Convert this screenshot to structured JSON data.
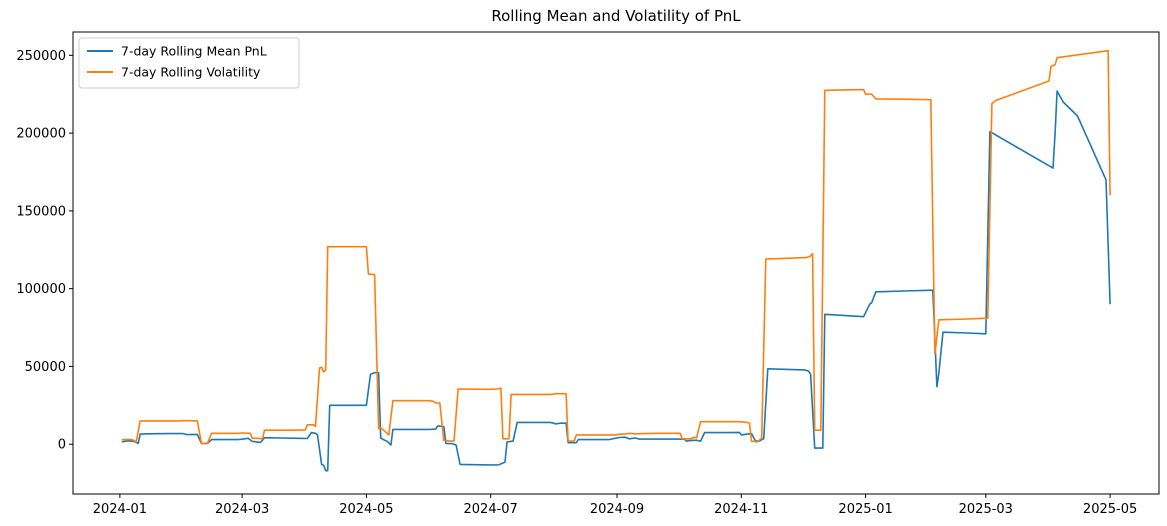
{
  "chart_data": {
    "type": "line",
    "title": "Rolling Mean and Volatility of PnL",
    "xlabel": "",
    "ylabel": "",
    "x_axis_type": "date",
    "xlim": [
      "2023-12-09",
      "2025-05-25"
    ],
    "ylim": [
      -32000,
      265000
    ],
    "x_ticks": [
      "2024-01-01",
      "2024-03-01",
      "2024-05-01",
      "2024-07-01",
      "2024-09-01",
      "2024-11-01",
      "2025-01-01",
      "2025-03-01",
      "2025-05-01"
    ],
    "x_tick_labels": [
      "2024-01",
      "2024-03",
      "2024-05",
      "2024-07",
      "2024-09",
      "2024-11",
      "2025-01",
      "2025-03",
      "2025-05"
    ],
    "y_ticks": [
      0,
      50000,
      100000,
      150000,
      200000,
      250000
    ],
    "y_tick_labels": [
      "0",
      "50000",
      "100000",
      "150000",
      "200000",
      "250000"
    ],
    "grid": false,
    "legend_position": "top-left",
    "series": [
      {
        "name": "7-day Rolling Mean PnL",
        "color": "#1f77b4",
        "points": [
          [
            "2024-01-02",
            1500
          ],
          [
            "2024-01-05",
            2200
          ],
          [
            "2024-01-08",
            1800
          ],
          [
            "2024-01-10",
            500
          ],
          [
            "2024-01-11",
            6500
          ],
          [
            "2024-01-15",
            6700
          ],
          [
            "2024-01-25",
            6800
          ],
          [
            "2024-02-01",
            6800
          ],
          [
            "2024-02-03",
            6200
          ],
          [
            "2024-02-08",
            6300
          ],
          [
            "2024-02-10",
            500
          ],
          [
            "2024-02-13",
            500
          ],
          [
            "2024-02-15",
            3000
          ],
          [
            "2024-02-28",
            3000
          ],
          [
            "2024-03-01",
            3200
          ],
          [
            "2024-03-04",
            3800
          ],
          [
            "2024-03-06",
            1800
          ],
          [
            "2024-03-08",
            1500
          ],
          [
            "2024-03-10",
            1200
          ],
          [
            "2024-03-12",
            4200
          ],
          [
            "2024-03-20",
            4000
          ],
          [
            "2024-03-28",
            3800
          ],
          [
            "2024-04-02",
            3700
          ],
          [
            "2024-04-04",
            7500
          ],
          [
            "2024-04-06",
            7000
          ],
          [
            "2024-04-07",
            6000
          ],
          [
            "2024-04-09",
            -13000
          ],
          [
            "2024-04-10",
            -13500
          ],
          [
            "2024-04-11",
            -17000
          ],
          [
            "2024-04-12",
            -17000
          ],
          [
            "2024-04-13",
            25000
          ],
          [
            "2024-04-20",
            25000
          ],
          [
            "2024-05-01",
            25000
          ],
          [
            "2024-05-03",
            45000
          ],
          [
            "2024-05-05",
            46000
          ],
          [
            "2024-05-07",
            46000
          ],
          [
            "2024-05-08",
            4000
          ],
          [
            "2024-05-10",
            2500
          ],
          [
            "2024-05-11",
            2000
          ],
          [
            "2024-05-13",
            -500
          ],
          [
            "2024-05-14",
            9500
          ],
          [
            "2024-05-25",
            9500
          ],
          [
            "2024-06-01",
            9500
          ],
          [
            "2024-06-04",
            9700
          ],
          [
            "2024-06-05",
            11800
          ],
          [
            "2024-06-08",
            11300
          ],
          [
            "2024-06-09",
            500
          ],
          [
            "2024-06-12",
            400
          ],
          [
            "2024-06-14",
            -500
          ],
          [
            "2024-06-16",
            -13000
          ],
          [
            "2024-06-30",
            -13300
          ],
          [
            "2024-07-05",
            -13200
          ],
          [
            "2024-07-08",
            -11500
          ],
          [
            "2024-07-09",
            1500
          ],
          [
            "2024-07-12",
            2000
          ],
          [
            "2024-07-14",
            14000
          ],
          [
            "2024-07-30",
            14000
          ],
          [
            "2024-08-01",
            13500
          ],
          [
            "2024-08-02",
            13000
          ],
          [
            "2024-08-04",
            13500
          ],
          [
            "2024-08-07",
            13500
          ],
          [
            "2024-08-08",
            1000
          ],
          [
            "2024-08-12",
            1000
          ],
          [
            "2024-08-13",
            3000
          ],
          [
            "2024-08-28",
            3000
          ],
          [
            "2024-09-02",
            4300
          ],
          [
            "2024-09-05",
            4500
          ],
          [
            "2024-09-07",
            3500
          ],
          [
            "2024-09-10",
            4000
          ],
          [
            "2024-09-12",
            3300
          ],
          [
            "2024-09-20",
            3300
          ],
          [
            "2024-10-01",
            3300
          ],
          [
            "2024-10-04",
            3200
          ],
          [
            "2024-10-05",
            2000
          ],
          [
            "2024-10-08",
            2500
          ],
          [
            "2024-10-10",
            2500
          ],
          [
            "2024-10-12",
            2000
          ],
          [
            "2024-10-14",
            7500
          ],
          [
            "2024-10-25",
            7500
          ],
          [
            "2024-10-31",
            7600
          ],
          [
            "2024-11-01",
            6000
          ],
          [
            "2024-11-04",
            6500
          ],
          [
            "2024-11-06",
            6800
          ],
          [
            "2024-11-08",
            2000
          ],
          [
            "2024-11-10",
            2000
          ],
          [
            "2024-11-11",
            3000
          ],
          [
            "2024-11-12",
            3500
          ],
          [
            "2024-11-14",
            48500
          ],
          [
            "2024-12-02",
            47800
          ],
          [
            "2024-12-04",
            47000
          ],
          [
            "2024-12-05",
            45000
          ],
          [
            "2024-12-07",
            -2500
          ],
          [
            "2024-12-11",
            -2500
          ],
          [
            "2024-12-12",
            83500
          ],
          [
            "2024-12-31",
            82000
          ],
          [
            "2025-01-03",
            90000
          ],
          [
            "2025-01-04",
            91000
          ],
          [
            "2025-01-06",
            98000
          ],
          [
            "2025-01-20",
            98500
          ],
          [
            "2025-02-03",
            99000
          ],
          [
            "2025-02-05",
            37000
          ],
          [
            "2025-02-06",
            46000
          ],
          [
            "2025-02-08",
            72000
          ],
          [
            "2025-02-20",
            71500
          ],
          [
            "2025-03-01",
            71000
          ],
          [
            "2025-03-03",
            201000
          ],
          [
            "2025-04-03",
            177500
          ],
          [
            "2025-04-04",
            200000
          ],
          [
            "2025-04-05",
            227000
          ],
          [
            "2025-04-08",
            220000
          ],
          [
            "2025-04-15",
            211000
          ],
          [
            "2025-04-29",
            170000
          ],
          [
            "2025-05-01",
            90000
          ]
        ]
      },
      {
        "name": "7-day Rolling Volatility",
        "color": "#ff7f0e",
        "points": [
          [
            "2024-01-02",
            3000
          ],
          [
            "2024-01-07",
            3000
          ],
          [
            "2024-01-09",
            1500
          ],
          [
            "2024-01-11",
            15000
          ],
          [
            "2024-01-20",
            15000
          ],
          [
            "2024-01-31",
            15000
          ],
          [
            "2024-02-01",
            15200
          ],
          [
            "2024-02-08",
            15000
          ],
          [
            "2024-02-10",
            600
          ],
          [
            "2024-02-13",
            600
          ],
          [
            "2024-02-15",
            7000
          ],
          [
            "2024-02-28",
            7000
          ],
          [
            "2024-03-01",
            7200
          ],
          [
            "2024-03-05",
            7000
          ],
          [
            "2024-03-06",
            3800
          ],
          [
            "2024-03-08",
            3800
          ],
          [
            "2024-03-11",
            3500
          ],
          [
            "2024-03-12",
            9000
          ],
          [
            "2024-03-25",
            9000
          ],
          [
            "2024-04-01",
            9200
          ],
          [
            "2024-04-02",
            12500
          ],
          [
            "2024-04-05",
            12500
          ],
          [
            "2024-04-06",
            11500
          ],
          [
            "2024-04-08",
            49000
          ],
          [
            "2024-04-09",
            49500
          ],
          [
            "2024-04-10",
            46500
          ],
          [
            "2024-04-11",
            47500
          ],
          [
            "2024-04-12",
            127000
          ],
          [
            "2024-05-01",
            127000
          ],
          [
            "2024-05-02",
            109500
          ],
          [
            "2024-05-05",
            109000
          ],
          [
            "2024-05-07",
            10000
          ],
          [
            "2024-05-08",
            10500
          ],
          [
            "2024-05-10",
            8500
          ],
          [
            "2024-05-12",
            6000
          ],
          [
            "2024-05-14",
            28000
          ],
          [
            "2024-05-30",
            28000
          ],
          [
            "2024-06-01",
            28000
          ],
          [
            "2024-06-03",
            27500
          ],
          [
            "2024-06-04",
            26500
          ],
          [
            "2024-06-06",
            26500
          ],
          [
            "2024-06-08",
            2500
          ],
          [
            "2024-06-11",
            2000
          ],
          [
            "2024-06-13",
            2000
          ],
          [
            "2024-06-15",
            35500
          ],
          [
            "2024-06-30",
            35300
          ],
          [
            "2024-07-04",
            35500
          ],
          [
            "2024-07-06",
            36000
          ],
          [
            "2024-07-07",
            3500
          ],
          [
            "2024-07-10",
            3500
          ],
          [
            "2024-07-11",
            32000
          ],
          [
            "2024-07-31",
            32000
          ],
          [
            "2024-08-02",
            32500
          ],
          [
            "2024-08-07",
            32500
          ],
          [
            "2024-08-08",
            2000
          ],
          [
            "2024-08-11",
            2000
          ],
          [
            "2024-08-12",
            6000
          ],
          [
            "2024-08-31",
            6000
          ],
          [
            "2024-09-03",
            6500
          ],
          [
            "2024-09-05",
            6500
          ],
          [
            "2024-09-07",
            7000
          ],
          [
            "2024-09-10",
            6700
          ],
          [
            "2024-09-20",
            7000
          ],
          [
            "2024-10-02",
            7000
          ],
          [
            "2024-10-03",
            3500
          ],
          [
            "2024-10-07",
            3500
          ],
          [
            "2024-10-09",
            4500
          ],
          [
            "2024-10-10",
            4000
          ],
          [
            "2024-10-12",
            14500
          ],
          [
            "2024-10-31",
            14500
          ],
          [
            "2024-11-04",
            14000
          ],
          [
            "2024-11-05",
            13500
          ],
          [
            "2024-11-06",
            2000
          ],
          [
            "2024-11-09",
            1500
          ],
          [
            "2024-11-11",
            4000
          ],
          [
            "2024-11-13",
            119000
          ],
          [
            "2024-12-03",
            120000
          ],
          [
            "2024-12-05",
            121000
          ],
          [
            "2024-12-06",
            122500
          ],
          [
            "2024-12-07",
            9000
          ],
          [
            "2024-12-10",
            9000
          ],
          [
            "2024-12-12",
            227500
          ],
          [
            "2024-12-31",
            228000
          ],
          [
            "2025-01-01",
            225000
          ],
          [
            "2025-01-04",
            225000
          ],
          [
            "2025-01-06",
            222000
          ],
          [
            "2025-01-20",
            221800
          ],
          [
            "2025-02-02",
            221500
          ],
          [
            "2025-02-04",
            58000
          ],
          [
            "2025-02-06",
            80000
          ],
          [
            "2025-02-20",
            80500
          ],
          [
            "2025-03-02",
            81000
          ],
          [
            "2025-03-04",
            219000
          ],
          [
            "2025-03-06",
            221000
          ],
          [
            "2025-04-01",
            233500
          ],
          [
            "2025-04-02",
            243000
          ],
          [
            "2025-04-04",
            244000
          ],
          [
            "2025-04-05",
            248500
          ],
          [
            "2025-04-30",
            253000
          ],
          [
            "2025-05-01",
            160000
          ]
        ]
      }
    ]
  }
}
